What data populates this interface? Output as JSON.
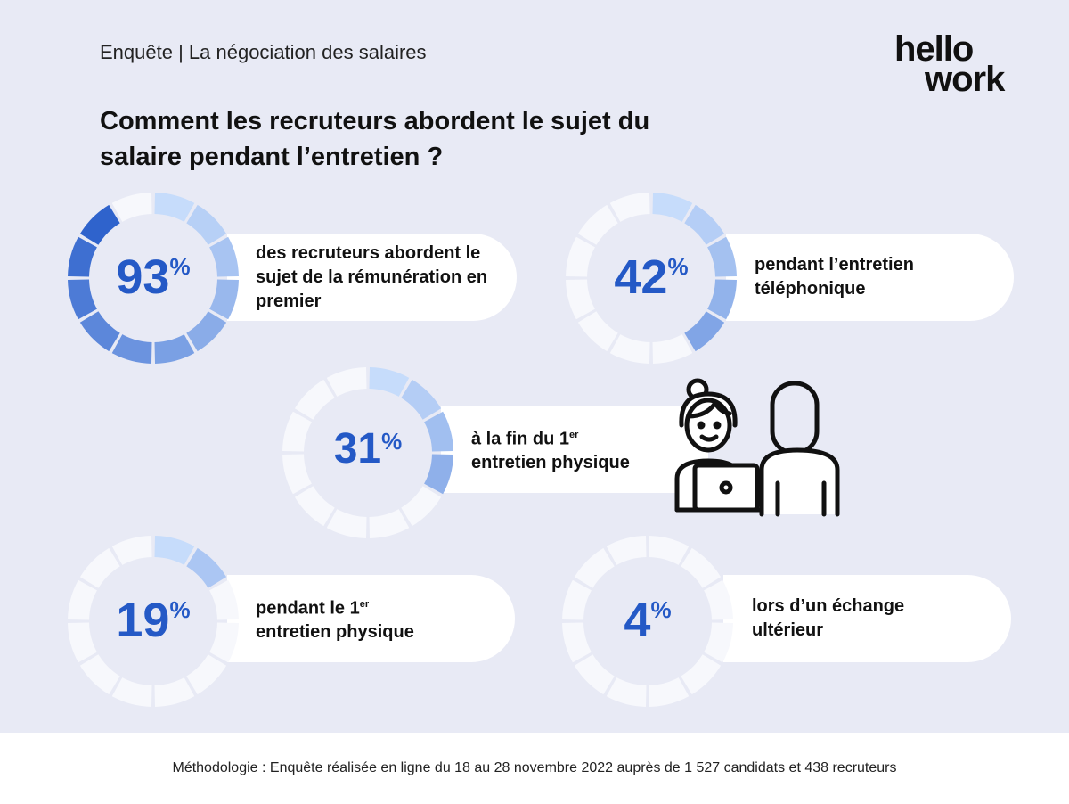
{
  "header": {
    "kicker": "Enquête | La négociation des salaires",
    "title": "Comment les recruteurs abordent le sujet du salaire pendant l’entretien ?",
    "logo": "hellowork"
  },
  "chart_data": {
    "type": "donut",
    "segments_per_ring": 12,
    "colors": {
      "light": "#c6dcfb",
      "dark": "#2158c8",
      "empty": "#f7f8fc",
      "text": "#2459c6"
    },
    "items": [
      {
        "value": 93,
        "label": "93",
        "unit": "%",
        "text": "des recruteurs abordent le sujet de la rémunération en premier"
      },
      {
        "value": 42,
        "label": "42",
        "unit": "%",
        "text": "pendant l’entretien téléphonique"
      },
      {
        "value": 31,
        "label": "31",
        "unit": "%",
        "text": "à la fin du 1",
        "sup": "er",
        "text2": "entretien physique"
      },
      {
        "value": 19,
        "label": "19",
        "unit": "%",
        "text": "pendant le 1",
        "sup": "er",
        "text2": "entretien physique"
      },
      {
        "value": 4,
        "label": "4",
        "unit": "%",
        "text": "lors d’un échange ultérieur"
      }
    ]
  },
  "footer": {
    "text": "Méthodologie : Enquête réalisée en ligne du 18 au 28 novembre 2022 auprès de 1 527 candidats et 438 recruteurs"
  }
}
